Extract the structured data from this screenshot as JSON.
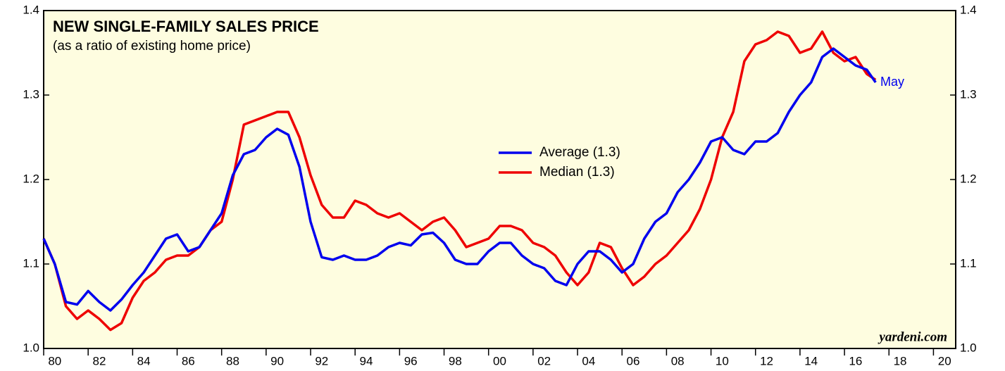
{
  "chart_data": {
    "type": "line",
    "title": "NEW SINGLE-FAMILY SALES PRICE",
    "subtitle": "(as a ratio of existing home price)",
    "annotations": [
      "May",
      "yardeni.com"
    ],
    "x": [
      1980.0,
      1980.5,
      1981.0,
      1981.5,
      1982.0,
      1982.5,
      1983.0,
      1983.5,
      1984.0,
      1984.5,
      1985.0,
      1985.5,
      1986.0,
      1986.5,
      1987.0,
      1987.5,
      1988.0,
      1988.5,
      1989.0,
      1989.5,
      1990.0,
      1990.5,
      1991.0,
      1991.5,
      1992.0,
      1992.5,
      1993.0,
      1993.5,
      1994.0,
      1994.5,
      1995.0,
      1995.5,
      1996.0,
      1996.5,
      1997.0,
      1997.5,
      1998.0,
      1998.5,
      1999.0,
      1999.5,
      2000.0,
      2000.5,
      2001.0,
      2001.5,
      2002.0,
      2002.5,
      2003.0,
      2003.5,
      2004.0,
      2004.5,
      2005.0,
      2005.5,
      2006.0,
      2006.5,
      2007.0,
      2007.5,
      2008.0,
      2008.5,
      2009.0,
      2009.5,
      2010.0,
      2010.5,
      2011.0,
      2011.5,
      2012.0,
      2012.5,
      2013.0,
      2013.5,
      2014.0,
      2014.5,
      2015.0,
      2015.5,
      2016.0,
      2016.5,
      2017.0,
      2017.4
    ],
    "series": [
      {
        "name": "Average (1.3)",
        "color": "#0000ee",
        "values": [
          1.13,
          1.1,
          1.055,
          1.052,
          1.068,
          1.055,
          1.045,
          1.058,
          1.075,
          1.09,
          1.11,
          1.13,
          1.135,
          1.115,
          1.12,
          1.14,
          1.16,
          1.205,
          1.23,
          1.235,
          1.25,
          1.26,
          1.253,
          1.215,
          1.15,
          1.108,
          1.105,
          1.11,
          1.105,
          1.105,
          1.11,
          1.12,
          1.125,
          1.122,
          1.135,
          1.137,
          1.125,
          1.105,
          1.1,
          1.1,
          1.115,
          1.125,
          1.125,
          1.11,
          1.1,
          1.095,
          1.08,
          1.075,
          1.1,
          1.115,
          1.115,
          1.105,
          1.09,
          1.1,
          1.13,
          1.15,
          1.16,
          1.185,
          1.2,
          1.22,
          1.245,
          1.25,
          1.235,
          1.23,
          1.245,
          1.245,
          1.255,
          1.28,
          1.3,
          1.315,
          1.345,
          1.355,
          1.345,
          1.335,
          1.33,
          1.315
        ]
      },
      {
        "name": "Median (1.3)",
        "color": "#ee0000",
        "values": [
          1.13,
          1.1,
          1.05,
          1.035,
          1.045,
          1.035,
          1.022,
          1.03,
          1.06,
          1.08,
          1.09,
          1.105,
          1.11,
          1.11,
          1.12,
          1.14,
          1.15,
          1.2,
          1.265,
          1.27,
          1.275,
          1.28,
          1.28,
          1.25,
          1.205,
          1.17,
          1.155,
          1.155,
          1.175,
          1.17,
          1.16,
          1.155,
          1.16,
          1.15,
          1.14,
          1.15,
          1.155,
          1.14,
          1.12,
          1.125,
          1.13,
          1.145,
          1.145,
          1.14,
          1.125,
          1.12,
          1.11,
          1.09,
          1.075,
          1.09,
          1.125,
          1.12,
          1.095,
          1.075,
          1.085,
          1.1,
          1.11,
          1.125,
          1.14,
          1.165,
          1.2,
          1.25,
          1.28,
          1.34,
          1.36,
          1.365,
          1.375,
          1.37,
          1.35,
          1.355,
          1.375,
          1.35,
          1.34,
          1.345,
          1.325,
          1.318
        ]
      }
    ],
    "xlim": [
      1980,
      2021
    ],
    "xticks": [
      {
        "value": 1980,
        "label": "80"
      },
      {
        "value": 1982,
        "label": "82"
      },
      {
        "value": 1984,
        "label": "84"
      },
      {
        "value": 1986,
        "label": "86"
      },
      {
        "value": 1988,
        "label": "88"
      },
      {
        "value": 1990,
        "label": "90"
      },
      {
        "value": 1992,
        "label": "92"
      },
      {
        "value": 1994,
        "label": "94"
      },
      {
        "value": 1996,
        "label": "96"
      },
      {
        "value": 1998,
        "label": "98"
      },
      {
        "value": 2000,
        "label": "00"
      },
      {
        "value": 2002,
        "label": "02"
      },
      {
        "value": 2004,
        "label": "04"
      },
      {
        "value": 2006,
        "label": "06"
      },
      {
        "value": 2008,
        "label": "08"
      },
      {
        "value": 2010,
        "label": "10"
      },
      {
        "value": 2012,
        "label": "12"
      },
      {
        "value": 2014,
        "label": "14"
      },
      {
        "value": 2016,
        "label": "16"
      },
      {
        "value": 2018,
        "label": "18"
      },
      {
        "value": 2020,
        "label": "20"
      }
    ],
    "ylim": [
      1.0,
      1.4
    ],
    "yticks": [
      {
        "value": 1.0,
        "label": "1.0"
      },
      1.1,
      1.2,
      1.3,
      {
        "value": 1.4,
        "label": "1.4"
      }
    ],
    "grid": false
  }
}
